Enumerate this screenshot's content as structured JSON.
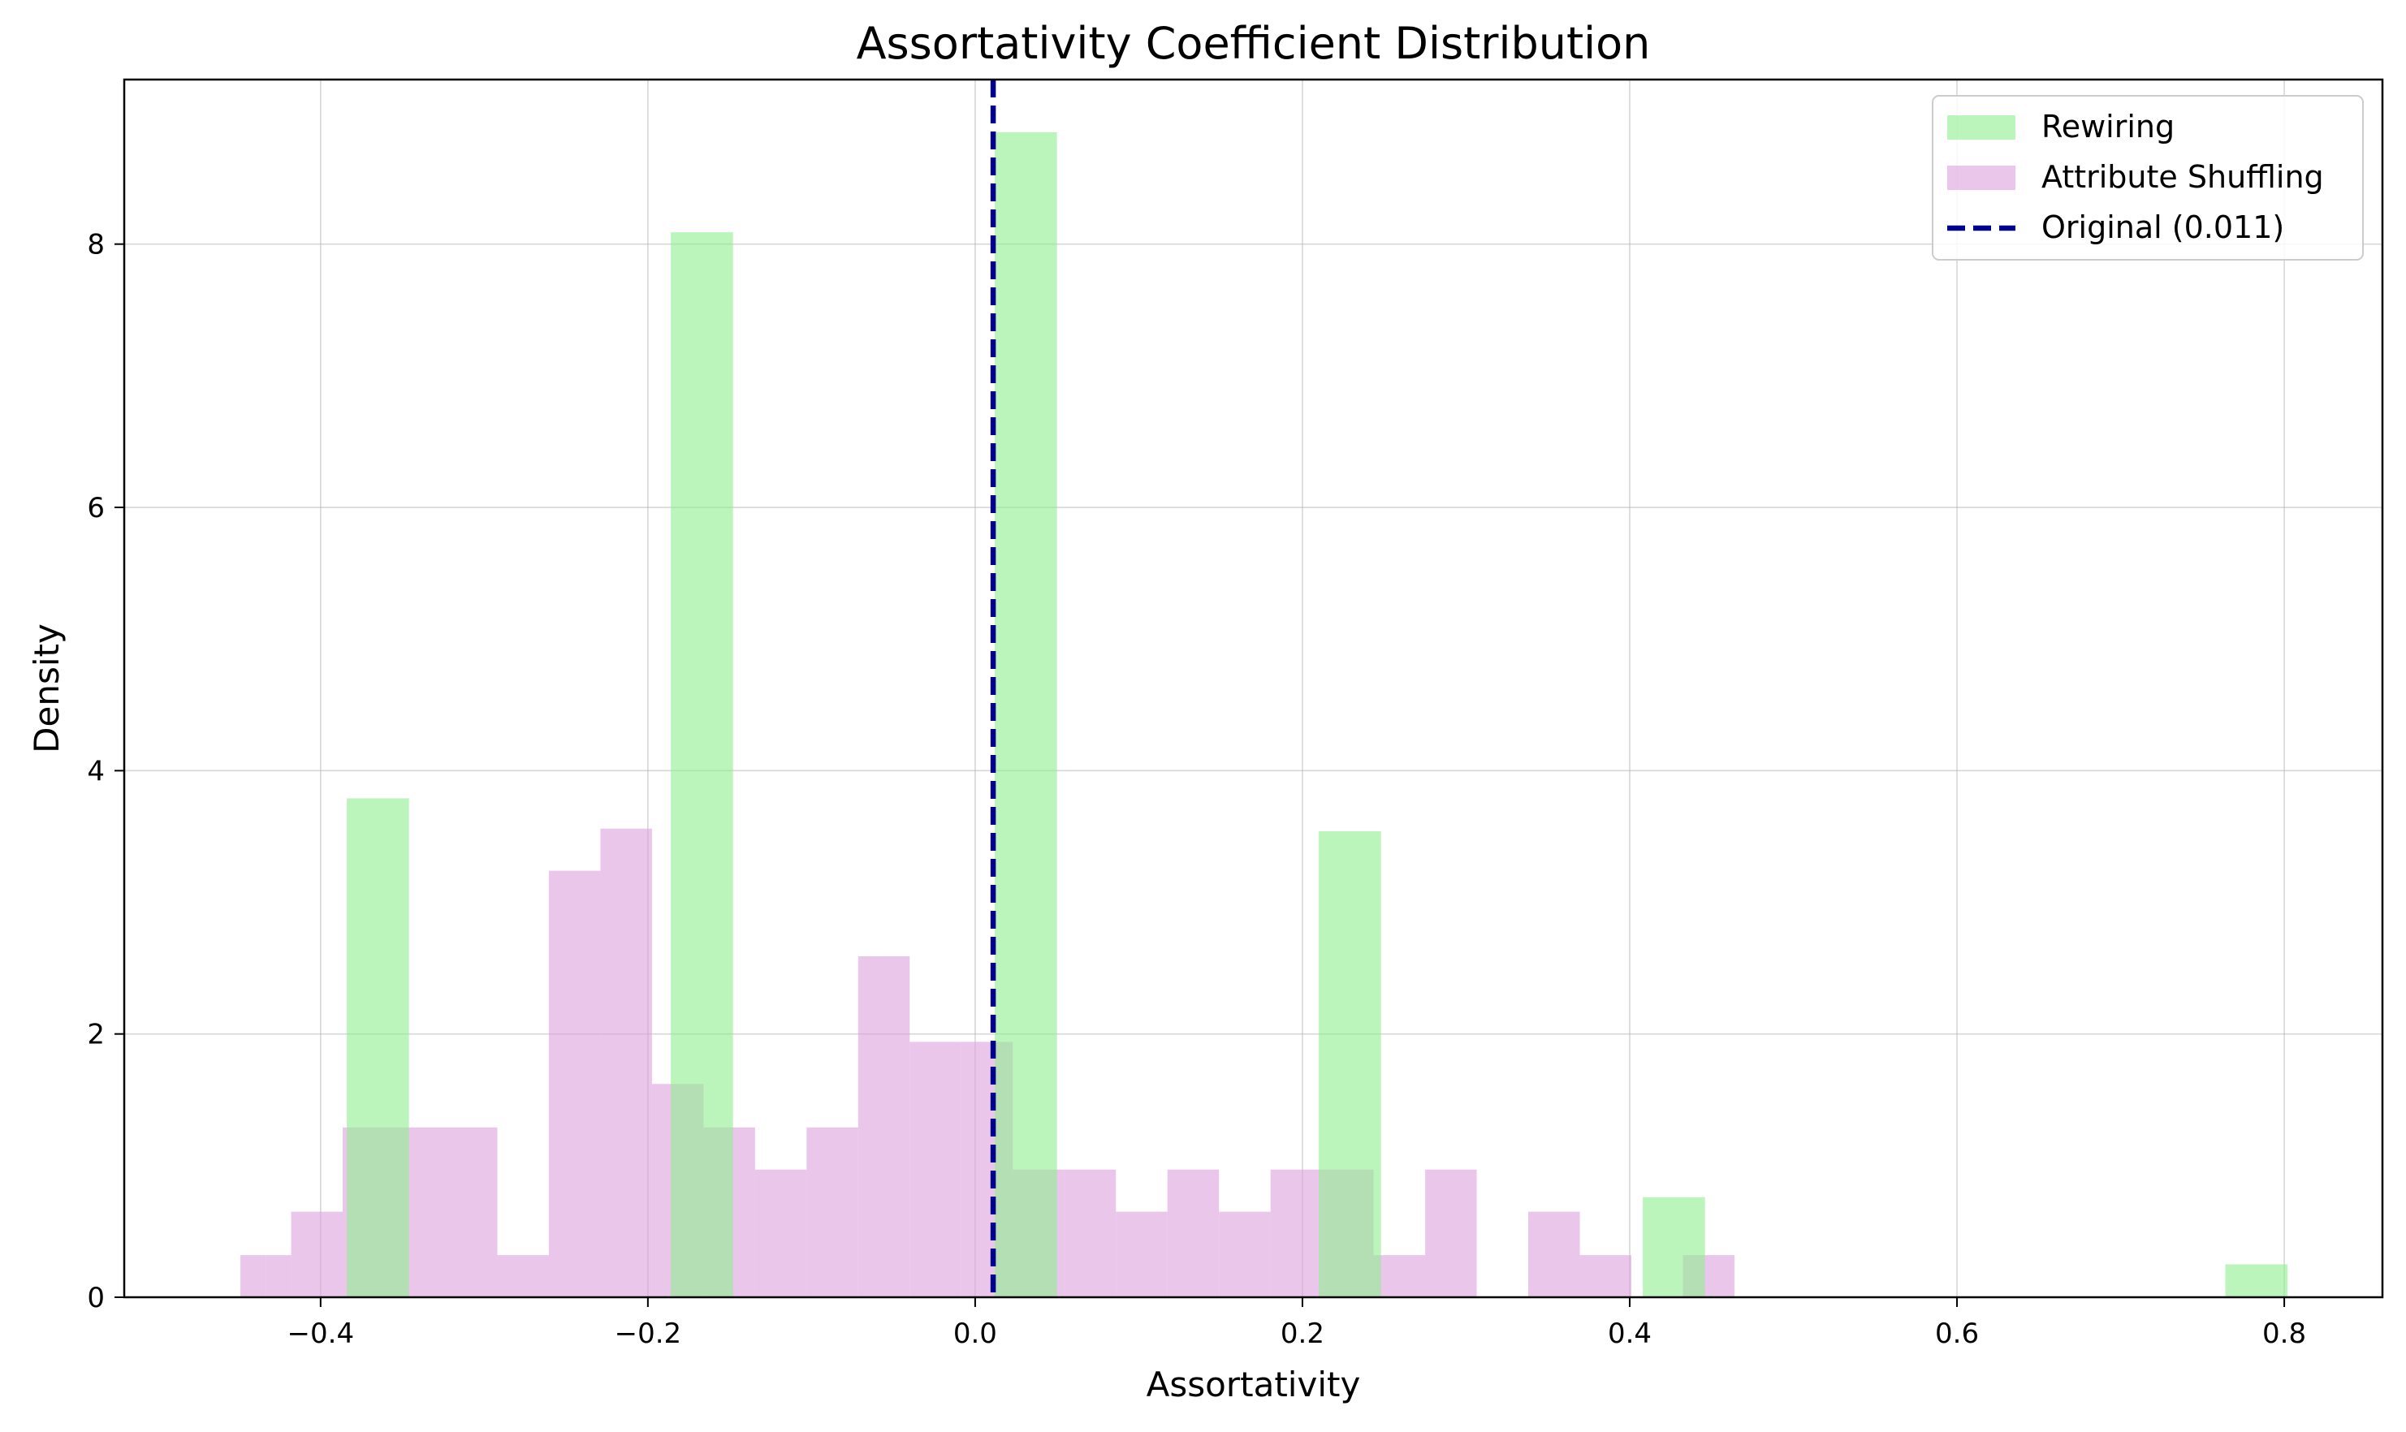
{
  "chart_data": {
    "type": "histogram",
    "title": "Assortativity Coefficient Distribution",
    "xlabel": "Assortativity",
    "ylabel": "Density",
    "xlim": [
      -0.52,
      0.86
    ],
    "ylim": [
      0,
      9.25
    ],
    "xticks": [
      -0.4,
      -0.2,
      0.0,
      0.2,
      0.4,
      0.6,
      0.8
    ],
    "xtick_labels": [
      "−0.4",
      "−0.2",
      "0.0",
      "0.2",
      "0.4",
      "0.6",
      "0.8"
    ],
    "yticks": [
      0,
      2,
      4,
      6,
      8
    ],
    "ytick_labels": [
      "0",
      "2",
      "4",
      "6",
      "8"
    ],
    "grid": true,
    "legend_position": "top-right",
    "series": [
      {
        "name": "Rewiring",
        "kind": "bars",
        "color": "#90ee90",
        "opacity": 0.6,
        "bins": [
          {
            "x0": -0.384,
            "x1": -0.346,
            "value": 3.79
          },
          {
            "x0": -0.186,
            "x1": -0.148,
            "value": 8.09
          },
          {
            "x0": 0.012,
            "x1": 0.05,
            "value": 8.85
          },
          {
            "x0": 0.21,
            "x1": 0.248,
            "value": 3.54
          },
          {
            "x0": 0.408,
            "x1": 0.446,
            "value": 0.76
          },
          {
            "x0": 0.764,
            "x1": 0.802,
            "value": 0.25
          }
        ]
      },
      {
        "name": "Attribute Shuffling",
        "kind": "bars",
        "color": "#dda0dd",
        "opacity": 0.6,
        "bins": [
          {
            "x0": -0.449,
            "x1": -0.4335,
            "value": 0.32
          },
          {
            "x0": -0.4335,
            "x1": -0.418,
            "value": 0.32
          },
          {
            "x0": -0.418,
            "x1": -0.3865,
            "value": 0.65
          },
          {
            "x0": -0.3865,
            "x1": -0.355,
            "value": 1.29
          },
          {
            "x0": -0.355,
            "x1": -0.3235,
            "value": 1.29
          },
          {
            "x0": -0.3235,
            "x1": -0.292,
            "value": 1.29
          },
          {
            "x0": -0.292,
            "x1": -0.2605,
            "value": 0.32
          },
          {
            "x0": -0.2605,
            "x1": -0.229,
            "value": 3.24
          },
          {
            "x0": -0.229,
            "x1": -0.1975,
            "value": 3.56
          },
          {
            "x0": -0.1975,
            "x1": -0.166,
            "value": 1.62
          },
          {
            "x0": -0.166,
            "x1": -0.1345,
            "value": 1.29
          },
          {
            "x0": -0.1345,
            "x1": -0.103,
            "value": 0.97
          },
          {
            "x0": -0.103,
            "x1": -0.0715,
            "value": 1.29
          },
          {
            "x0": -0.0715,
            "x1": -0.04,
            "value": 2.59
          },
          {
            "x0": -0.04,
            "x1": -0.0085,
            "value": 1.94
          },
          {
            "x0": -0.0085,
            "x1": 0.023,
            "value": 1.94
          },
          {
            "x0": 0.023,
            "x1": 0.0545,
            "value": 0.97
          },
          {
            "x0": 0.0545,
            "x1": 0.086,
            "value": 0.97
          },
          {
            "x0": 0.086,
            "x1": 0.1175,
            "value": 0.65
          },
          {
            "x0": 0.1175,
            "x1": 0.149,
            "value": 0.97
          },
          {
            "x0": 0.149,
            "x1": 0.1805,
            "value": 0.65
          },
          {
            "x0": 0.1805,
            "x1": 0.212,
            "value": 0.97
          },
          {
            "x0": 0.212,
            "x1": 0.2435,
            "value": 0.97
          },
          {
            "x0": 0.2435,
            "x1": 0.275,
            "value": 0.32
          },
          {
            "x0": 0.275,
            "x1": 0.3065,
            "value": 0.97
          },
          {
            "x0": 0.3065,
            "x1": 0.338,
            "value": 0
          },
          {
            "x0": 0.338,
            "x1": 0.3695,
            "value": 0.65
          },
          {
            "x0": 0.3695,
            "x1": 0.401,
            "value": 0.32
          },
          {
            "x0": 0.401,
            "x1": 0.4325,
            "value": 0
          },
          {
            "x0": 0.4325,
            "x1": 0.464,
            "value": 0.32
          }
        ]
      },
      {
        "name": "Original (0.011)",
        "kind": "vline",
        "color": "#00008b",
        "x": 0.011,
        "linestyle": "dashed"
      }
    ]
  }
}
